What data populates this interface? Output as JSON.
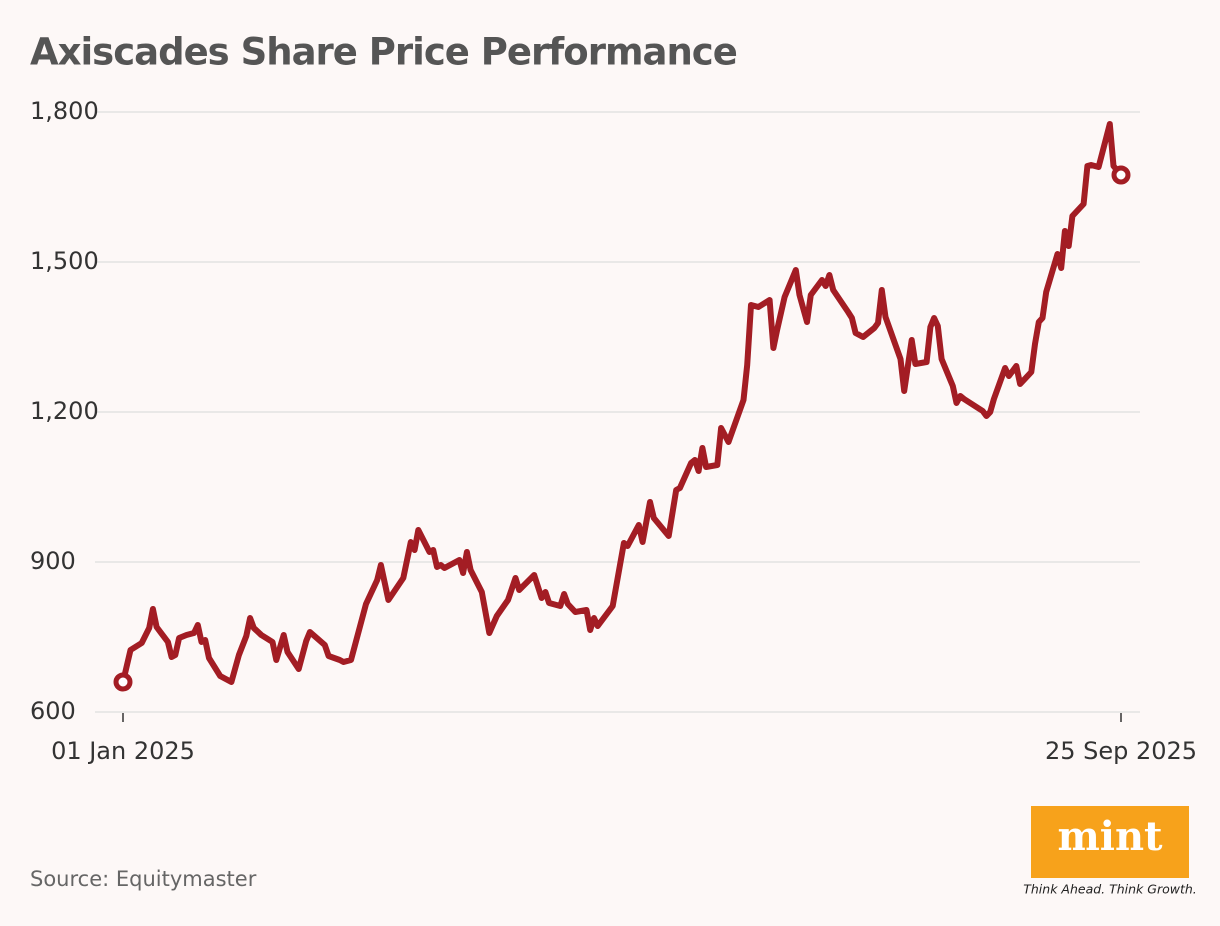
{
  "chart_data": {
    "type": "line",
    "title": "Axiscades Share Price Performance",
    "source": "Source: Equitymaster",
    "logo": {
      "name": "mint",
      "tagline": "Think Ahead. Think Growth."
    },
    "color": "#a31d24",
    "grid": true,
    "x": [
      "2025-01-01",
      "2025-01-03",
      "2025-01-06",
      "2025-01-08",
      "2025-01-09",
      "2025-01-10",
      "2025-01-13",
      "2025-01-14",
      "2025-01-15",
      "2025-01-16",
      "2025-01-18",
      "2025-01-20",
      "2025-01-21",
      "2025-01-22",
      "2025-01-23",
      "2025-01-24",
      "2025-01-27",
      "2025-01-28",
      "2025-01-30",
      "2025-02-01",
      "2025-02-03",
      "2025-02-04",
      "2025-02-05",
      "2025-02-07",
      "2025-02-10",
      "2025-02-11",
      "2025-02-13",
      "2025-02-14",
      "2025-02-17",
      "2025-02-19",
      "2025-02-20",
      "2025-02-24",
      "2025-02-25",
      "2025-02-28",
      "2025-03-01",
      "2025-03-03",
      "2025-03-07",
      "2025-03-10",
      "2025-03-11",
      "2025-03-13",
      "2025-03-17",
      "2025-03-19",
      "2025-03-20",
      "2025-03-21",
      "2025-03-24",
      "2025-03-25",
      "2025-03-26",
      "2025-03-27",
      "2025-03-28",
      "2025-04-01",
      "2025-04-02",
      "2025-04-03",
      "2025-04-04",
      "2025-04-07",
      "2025-04-09",
      "2025-04-11",
      "2025-04-14",
      "2025-04-16",
      "2025-04-17",
      "2025-04-21",
      "2025-04-23",
      "2025-04-24",
      "2025-04-25",
      "2025-04-28",
      "2025-04-29",
      "2025-04-30",
      "2025-05-02",
      "2025-05-05",
      "2025-05-06",
      "2025-05-07",
      "2025-05-08",
      "2025-05-12",
      "2025-05-15",
      "2025-05-16",
      "2025-05-19",
      "2025-05-20",
      "2025-05-22",
      "2025-05-23",
      "2025-05-27",
      "2025-05-29",
      "2025-05-30",
      "2025-06-02",
      "2025-06-03",
      "2025-06-04",
      "2025-06-05",
      "2025-06-06",
      "2025-06-09",
      "2025-06-10",
      "2025-06-12",
      "2025-06-16",
      "2025-06-17",
      "2025-06-18",
      "2025-06-20",
      "2025-06-23",
      "2025-06-24",
      "2025-06-25",
      "2025-06-27",
      "2025-06-30",
      "2025-07-01",
      "2025-07-03",
      "2025-07-04",
      "2025-07-07",
      "2025-07-08",
      "2025-07-09",
      "2025-07-10",
      "2025-07-14",
      "2025-07-15",
      "2025-07-16",
      "2025-07-18",
      "2025-07-21",
      "2025-07-22",
      "2025-07-23",
      "2025-07-24",
      "2025-07-28",
      "2025-07-29",
      "2025-07-31",
      "2025-08-01",
      "2025-08-04",
      "2025-08-05",
      "2025-08-06",
      "2025-08-07",
      "2025-08-08",
      "2025-08-11",
      "2025-08-12",
      "2025-08-13",
      "2025-08-14",
      "2025-08-19",
      "2025-08-20",
      "2025-08-21",
      "2025-08-22",
      "2025-08-25",
      "2025-08-26",
      "2025-08-28",
      "2025-08-29",
      "2025-09-01",
      "2025-09-02",
      "2025-09-03",
      "2025-09-04",
      "2025-09-05",
      "2025-09-08",
      "2025-09-09",
      "2025-09-10",
      "2025-09-11",
      "2025-09-12",
      "2025-09-15",
      "2025-09-16",
      "2025-09-17",
      "2025-09-19",
      "2025-09-22",
      "2025-09-23",
      "2025-09-25"
    ],
    "values": [
      660,
      724,
      738,
      768,
      806,
      770,
      740,
      710,
      714,
      748,
      754,
      758,
      774,
      740,
      744,
      708,
      672,
      668,
      660,
      714,
      752,
      788,
      768,
      754,
      740,
      704,
      754,
      720,
      686,
      742,
      760,
      734,
      712,
      704,
      700,
      704,
      816,
      864,
      894,
      824,
      868,
      940,
      924,
      964,
      920,
      924,
      890,
      894,
      888,
      904,
      878,
      920,
      884,
      840,
      758,
      792,
      824,
      868,
      844,
      874,
      828,
      840,
      818,
      812,
      836,
      816,
      800,
      804,
      764,
      788,
      772,
      812,
      938,
      932,
      974,
      940,
      1020,
      988,
      952,
      1044,
      1048,
      1098,
      1104,
      1082,
      1128,
      1090,
      1094,
      1168,
      1140,
      1224,
      1294,
      1414,
      1410,
      1424,
      1328,
      1364,
      1430,
      1484,
      1434,
      1380,
      1434,
      1464,
      1452,
      1474,
      1444,
      1400,
      1388,
      1358,
      1350,
      1368,
      1378,
      1444,
      1390,
      1306,
      1242,
      1344,
      1296,
      1300,
      1370,
      1388,
      1372,
      1306,
      1252,
      1218,
      1232,
      1226,
      1202,
      1192,
      1200,
      1226,
      1288,
      1272,
      1292,
      1256,
      1280,
      1336,
      1380,
      1388,
      1440,
      1516,
      1488,
      1562,
      1532,
      1592,
      1616,
      1692,
      1694,
      1690,
      1776,
      1692,
      1674
    ],
    "xlim": [
      "2025-01-01",
      "2025-09-25"
    ],
    "xticks": [
      {
        "value": "2025-01-01",
        "label": "01 Jan 2025"
      },
      {
        "value": "2025-09-25",
        "label": "25 Sep 2025"
      }
    ],
    "ylim": [
      600,
      1800
    ],
    "yticks": [
      600,
      900,
      {
        "value": 1200,
        "label": "1,200"
      },
      {
        "value": 1500,
        "label": "1,500"
      },
      {
        "value": 1800,
        "label": "1,800"
      }
    ]
  }
}
